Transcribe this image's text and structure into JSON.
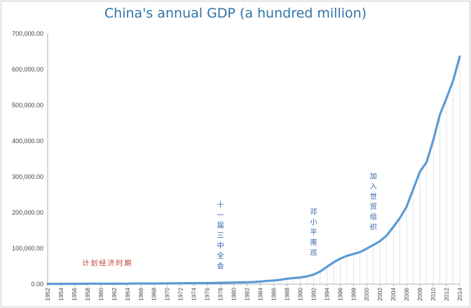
{
  "chart_data": {
    "type": "line",
    "title": "China's annual GDP (a hundred million)",
    "xlabel": "",
    "ylabel": "",
    "ylim": [
      0,
      700000
    ],
    "yticks": [
      0,
      100000,
      200000,
      300000,
      400000,
      500000,
      600000,
      700000
    ],
    "ytick_labels": [
      "0.00",
      "100,000.00",
      "200,000.00",
      "300,000.00",
      "400,000.00",
      "500,000.00",
      "600,000.00",
      "700,000.00"
    ],
    "xlim": [
      1952,
      2014
    ],
    "xtick_labels": [
      "1952",
      "1954",
      "1956",
      "1958",
      "1960",
      "1962",
      "1964",
      "1966",
      "1968",
      "1970",
      "1972",
      "1974",
      "1976",
      "1978",
      "1980",
      "1982",
      "1984",
      "1986",
      "1988",
      "1990",
      "1992",
      "1994",
      "1996",
      "1998",
      "2000",
      "2002",
      "2004",
      "2006",
      "2008",
      "2010",
      "2012",
      "2014"
    ],
    "series": [
      {
        "name": "GDP",
        "color": "#5b9bd5",
        "x": [
          1952,
          1953,
          1954,
          1955,
          1956,
          1957,
          1958,
          1959,
          1960,
          1961,
          1962,
          1963,
          1964,
          1965,
          1966,
          1967,
          1968,
          1969,
          1970,
          1971,
          1972,
          1973,
          1974,
          1975,
          1976,
          1977,
          1978,
          1979,
          1980,
          1981,
          1982,
          1983,
          1984,
          1985,
          1986,
          1987,
          1988,
          1989,
          1990,
          1991,
          1992,
          1993,
          1994,
          1995,
          1996,
          1997,
          1998,
          1999,
          2000,
          2001,
          2002,
          2003,
          2004,
          2005,
          2006,
          2007,
          2008,
          2009,
          2010,
          2011,
          2012,
          2013,
          2014
        ],
        "values": [
          679,
          824,
          859,
          910,
          1028,
          1068,
          1307,
          1439,
          1457,
          1220,
          1149,
          1233,
          1454,
          1716,
          1868,
          1773,
          1723,
          1937,
          2252,
          2426,
          2518,
          2720,
          2789,
          2997,
          2943,
          3201,
          3645,
          4062,
          4546,
          4892,
          5323,
          5963,
          7208,
          9016,
          10275,
          12059,
          15043,
          16992,
          18668,
          21781,
          26923,
          35334,
          48198,
          60794,
          71177,
          78973,
          84402,
          89677,
          99215,
          109655,
          120333,
          135823,
          159878,
          184937,
          216314,
          265810,
          314045,
          340903,
          401513,
          473104,
          519470,
          568845,
          636139
        ]
      }
    ],
    "annotations": [
      {
        "text": "计划经济时期",
        "x": 1961,
        "y": 52000,
        "color": "#c0392b",
        "orientation": "horizontal"
      },
      {
        "text": "十一届三中全会",
        "x": 1978,
        "y": 215000,
        "color": "#2e5fa3",
        "orientation": "vertical"
      },
      {
        "text": "邓小平南巡",
        "x": 1992,
        "y": 195000,
        "color": "#2e5fa3",
        "orientation": "vertical"
      },
      {
        "text": "加入世贸组织",
        "x": 2001,
        "y": 295000,
        "color": "#2e5fa3",
        "orientation": "vertical"
      }
    ]
  }
}
